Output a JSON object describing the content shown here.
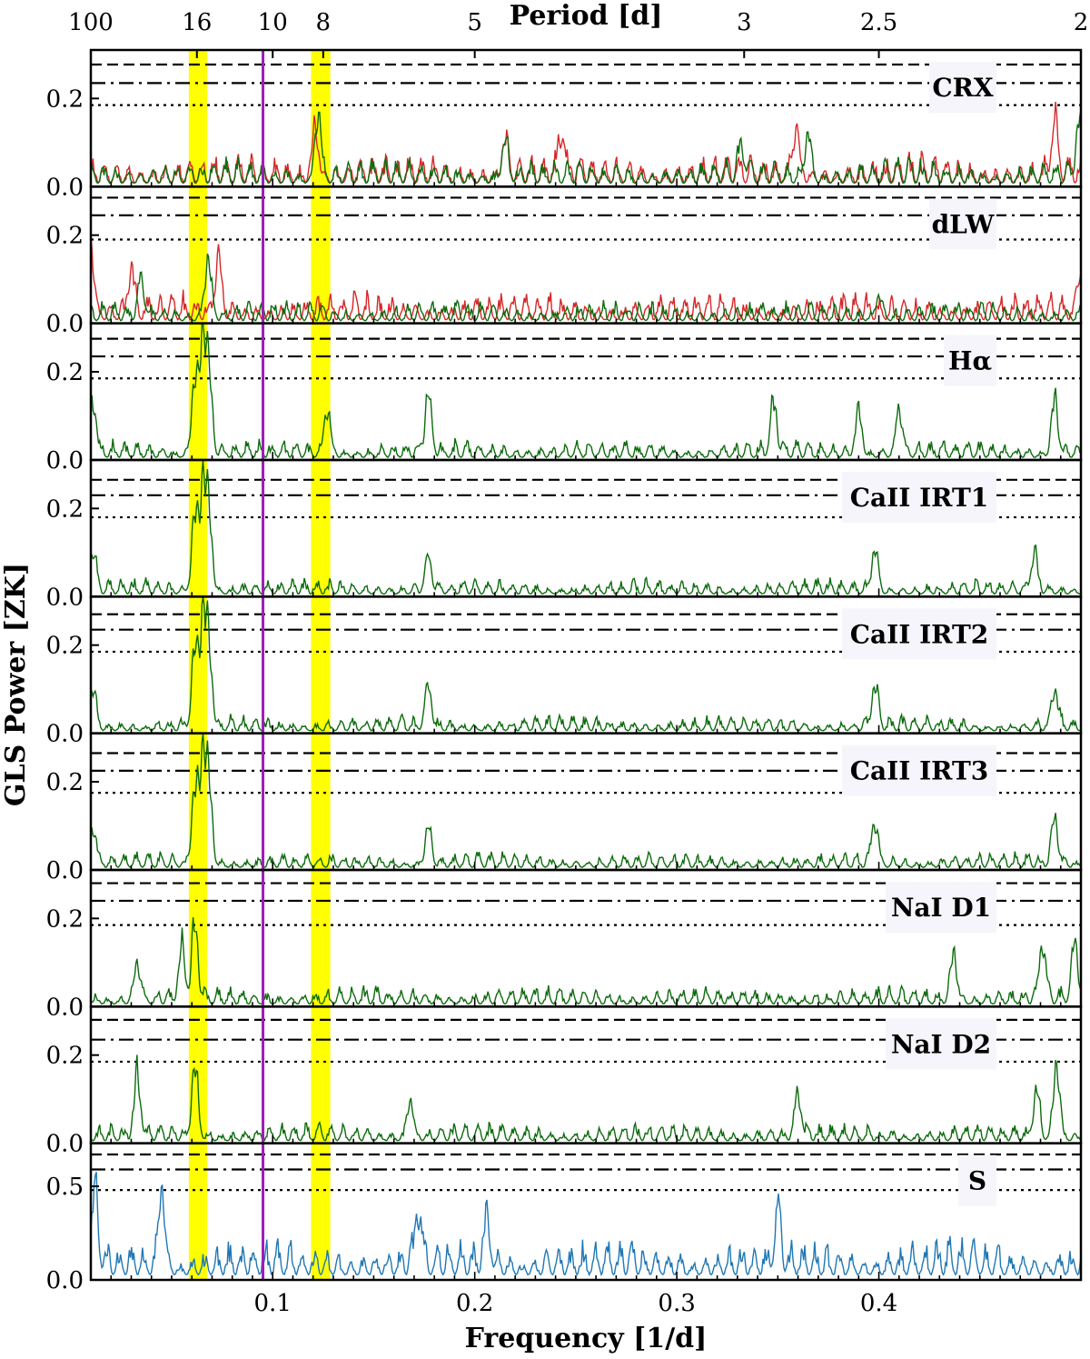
{
  "chart_data": {
    "type": "line",
    "x_axis": {
      "label": "Frequency [1/d]",
      "range": [
        0.01,
        0.5
      ],
      "ticks": [
        0.1,
        0.2,
        0.3,
        0.4
      ],
      "tick_labels": [
        "0.1",
        "0.2",
        "0.3",
        "0.4"
      ]
    },
    "top_axis": {
      "label": "Period [d]",
      "periods": [
        100,
        16,
        10,
        8,
        5,
        3,
        2.5,
        2
      ],
      "tick_labels": [
        "100",
        "16",
        "10",
        "8",
        "5",
        "3",
        "2.5",
        "2"
      ]
    },
    "ylabel": "GLS Power [ZK]",
    "highlight_bands": [
      {
        "from": 0.0585,
        "to": 0.0675,
        "color": "#ffff00"
      },
      {
        "from": 0.119,
        "to": 0.1285,
        "color": "#ffff00"
      }
    ],
    "vertical_line": {
      "x": 0.0952,
      "color": "#9b1fb5"
    },
    "colors": {
      "red_series": "#d62728",
      "green_series": "#0d6b0d",
      "blue_series": "#1f77b4"
    },
    "panels": [
      {
        "label": "CRX",
        "ylim": [
          0,
          0.31
        ],
        "yticks": [
          0.0,
          0.2
        ],
        "ytick_labels": [
          "0.0",
          "0.2"
        ],
        "fap": [
          0.277,
          0.235,
          0.185
        ],
        "series": [
          {
            "color": "red",
            "base": 0.022,
            "noise": 0.06,
            "seed": 11,
            "peaks": [
              [
                0.121,
                0.14
              ],
              [
                0.215,
                0.1
              ],
              [
                0.243,
                0.11
              ],
              [
                0.359,
                0.13
              ],
              [
                0.487,
                0.14
              ]
            ]
          },
          {
            "color": "green",
            "base": 0.02,
            "noise": 0.05,
            "seed": 23,
            "peaks": [
              [
                0.1225,
                0.175
              ],
              [
                0.215,
                0.1
              ],
              [
                0.332,
                0.08
              ],
              [
                0.365,
                0.12
              ],
              [
                0.499,
                0.13
              ]
            ]
          }
        ]
      },
      {
        "label": "dLW",
        "ylim": [
          0,
          0.31
        ],
        "yticks": [
          0.0,
          0.2
        ],
        "ytick_labels": [
          "0.0",
          "0.2"
        ],
        "fap": [
          0.285,
          0.245,
          0.19
        ],
        "series": [
          {
            "color": "red",
            "base": 0.02,
            "noise": 0.055,
            "seed": 37,
            "peaks": [
              [
                0.01,
                0.19
              ],
              [
                0.03,
                0.12
              ],
              [
                0.073,
                0.14
              ],
              [
                0.5,
                0.11
              ]
            ]
          },
          {
            "color": "green",
            "base": 0.015,
            "noise": 0.04,
            "seed": 41,
            "peaks": [
              [
                0.068,
                0.155
              ],
              [
                0.035,
                0.09
              ],
              [
                0.4,
                0.06
              ]
            ]
          }
        ]
      },
      {
        "label": "Hα",
        "ylim": [
          0,
          0.31
        ],
        "yticks": [
          0.0,
          0.2
        ],
        "ytick_labels": [
          "0.0",
          "0.2"
        ],
        "fap": [
          0.275,
          0.235,
          0.185
        ],
        "series": [
          {
            "color": "green",
            "base": 0.015,
            "noise": 0.035,
            "seed": 53,
            "peaks": [
              [
                0.0615,
                0.2
              ],
              [
                0.0655,
                0.3
              ],
              [
                0.0685,
                0.2
              ],
              [
                0.177,
                0.16
              ],
              [
                0.127,
                0.12
              ],
              [
                0.348,
                0.13
              ],
              [
                0.39,
                0.12
              ],
              [
                0.41,
                0.12
              ],
              [
                0.487,
                0.15
              ],
              [
                0.011,
                0.14
              ]
            ]
          }
        ]
      },
      {
        "label": "CaII IRT1",
        "ylim": [
          0,
          0.31
        ],
        "yticks": [
          0.0,
          0.2
        ],
        "ytick_labels": [
          "0.0",
          "0.2"
        ],
        "fap": [
          0.265,
          0.23,
          0.18
        ],
        "series": [
          {
            "color": "green",
            "base": 0.015,
            "noise": 0.03,
            "seed": 61,
            "peaks": [
              [
                0.0615,
                0.2
              ],
              [
                0.0655,
                0.27
              ],
              [
                0.0685,
                0.2
              ],
              [
                0.177,
                0.09
              ],
              [
                0.398,
                0.11
              ],
              [
                0.477,
                0.1
              ],
              [
                0.011,
                0.1
              ]
            ]
          }
        ]
      },
      {
        "label": "CaII IRT2",
        "ylim": [
          0,
          0.31
        ],
        "yticks": [
          0.0,
          0.2
        ],
        "ytick_labels": [
          "0.0",
          "0.2"
        ],
        "fap": [
          0.27,
          0.235,
          0.185
        ],
        "series": [
          {
            "color": "green",
            "base": 0.015,
            "noise": 0.03,
            "seed": 67,
            "peaks": [
              [
                0.0615,
                0.2
              ],
              [
                0.0655,
                0.28
              ],
              [
                0.0685,
                0.2
              ],
              [
                0.177,
                0.11
              ],
              [
                0.398,
                0.11
              ],
              [
                0.487,
                0.1
              ],
              [
                0.011,
                0.1
              ]
            ]
          }
        ]
      },
      {
        "label": "CaII IRT3",
        "ylim": [
          0,
          0.31
        ],
        "yticks": [
          0.0,
          0.2
        ],
        "ytick_labels": [
          "0.0",
          "0.2"
        ],
        "fap": [
          0.265,
          0.225,
          0.175
        ],
        "series": [
          {
            "color": "green",
            "base": 0.015,
            "noise": 0.03,
            "seed": 71,
            "peaks": [
              [
                0.0615,
                0.2
              ],
              [
                0.0655,
                0.28
              ],
              [
                0.0685,
                0.2
              ],
              [
                0.177,
                0.1
              ],
              [
                0.398,
                0.11
              ],
              [
                0.487,
                0.12
              ],
              [
                0.011,
                0.1
              ]
            ]
          }
        ]
      },
      {
        "label": "NaI D1",
        "ylim": [
          0,
          0.31
        ],
        "yticks": [
          0.0,
          0.2
        ],
        "ytick_labels": [
          "0.0",
          "0.2"
        ],
        "fap": [
          0.28,
          0.24,
          0.185
        ],
        "series": [
          {
            "color": "green",
            "base": 0.015,
            "noise": 0.035,
            "seed": 79,
            "peaks": [
              [
                0.0615,
                0.19
              ],
              [
                0.055,
                0.14
              ],
              [
                0.437,
                0.13
              ],
              [
                0.481,
                0.15
              ],
              [
                0.497,
                0.15
              ],
              [
                0.033,
                0.1
              ]
            ]
          }
        ]
      },
      {
        "label": "NaI D2",
        "ylim": [
          0,
          0.31
        ],
        "yticks": [
          0.0,
          0.2
        ],
        "ytick_labels": [
          "0.0",
          "0.2"
        ],
        "fap": [
          0.28,
          0.235,
          0.185
        ],
        "series": [
          {
            "color": "green",
            "base": 0.015,
            "noise": 0.035,
            "seed": 83,
            "peaks": [
              [
                0.0615,
                0.19
              ],
              [
                0.033,
                0.16
              ],
              [
                0.168,
                0.1
              ],
              [
                0.36,
                0.11
              ],
              [
                0.488,
                0.19
              ],
              [
                0.478,
                0.12
              ]
            ]
          }
        ]
      },
      {
        "label": "S",
        "ylim": [
          0,
          0.73
        ],
        "yticks": [
          0.0,
          0.5
        ],
        "ytick_labels": [
          "0.0",
          "0.5"
        ],
        "fap": [
          0.67,
          0.59,
          0.48
        ],
        "series": [
          {
            "color": "blue",
            "base": 0.07,
            "noise": 0.17,
            "seed": 97,
            "peaks": [
              [
                0.045,
                0.5
              ],
              [
                0.012,
                0.42
              ],
              [
                0.172,
                0.34
              ],
              [
                0.206,
                0.3
              ],
              [
                0.35,
                0.3
              ]
            ]
          }
        ]
      }
    ]
  }
}
